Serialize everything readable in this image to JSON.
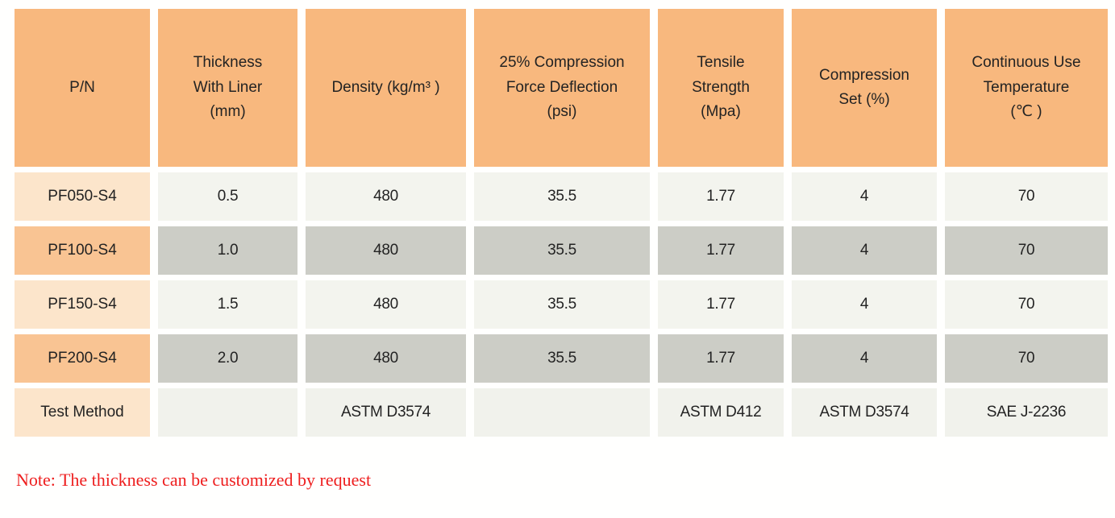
{
  "table": {
    "headers": {
      "pn": "P/N",
      "thickness": "Thickness\nWith Liner\n(mm)",
      "density": "Density (kg/m³ )",
      "cfd": "25% Compression\nForce Deflection\n(psi)",
      "tensile": "Tensile\nStrength\n(Mpa)",
      "compression_set": "Compression\nSet (%)",
      "temperature": "Continuous Use\nTemperature\n(℃ )"
    },
    "rows": [
      {
        "pn": "PF050-S4",
        "thickness": "0.5",
        "density": "480",
        "cfd": "35.5",
        "tensile": "1.77",
        "compression_set": "4",
        "temperature": "70"
      },
      {
        "pn": "PF100-S4",
        "thickness": "1.0",
        "density": "480",
        "cfd": "35.5",
        "tensile": "1.77",
        "compression_set": "4",
        "temperature": "70"
      },
      {
        "pn": "PF150-S4",
        "thickness": "1.5",
        "density": "480",
        "cfd": "35.5",
        "tensile": "1.77",
        "compression_set": "4",
        "temperature": "70"
      },
      {
        "pn": "PF200-S4",
        "thickness": "2.0",
        "density": "480",
        "cfd": "35.5",
        "tensile": "1.77",
        "compression_set": "4",
        "temperature": "70"
      }
    ],
    "test_method": {
      "label": "Test Method",
      "thickness": "",
      "density": "ASTM D3574",
      "cfd": "",
      "tensile": "ASTM D412",
      "compression_set": "ASTM D3574",
      "temperature": "SAE J-2236"
    }
  },
  "note": "Note: The thickness can be customized by request",
  "colors": {
    "header_bg": "#f8b87e",
    "label_odd_bg": "#fce5cb",
    "label_even_bg": "#f9c493",
    "data_odd_bg": "#f3f4ee",
    "data_even_bg": "#cccdc6",
    "note_red": "#ee1e1e"
  }
}
